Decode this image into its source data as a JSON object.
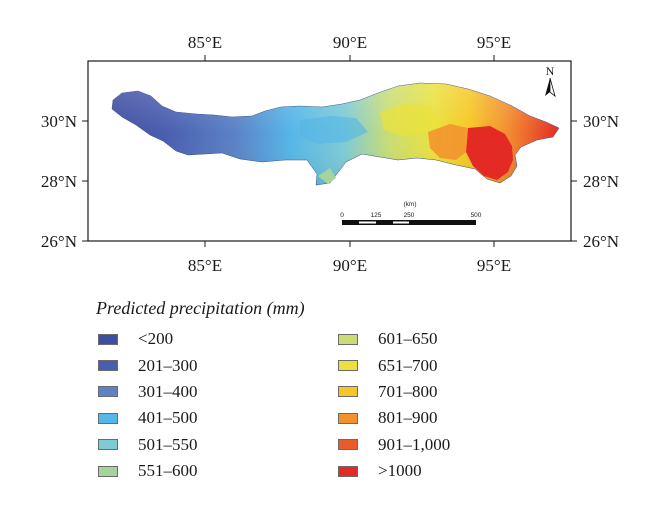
{
  "map": {
    "top_ticks": [
      "85°E",
      "90°E",
      "95°E"
    ],
    "bottom_ticks": [
      "85°E",
      "90°E",
      "95°E"
    ],
    "left_ticks": [
      "30°N",
      "28°N",
      "26°N"
    ],
    "right_ticks": [
      "30°N",
      "28°N",
      "26°N"
    ],
    "north_label": "N",
    "scale_bar": {
      "unit": "(km)",
      "labels": [
        "0",
        "125",
        "250",
        "500"
      ]
    }
  },
  "legend": {
    "title": "Predicted precipitation (mm)",
    "items": [
      {
        "label": "<200",
        "color": "#3e4fa0"
      },
      {
        "label": "201–300",
        "color": "#4a5eb0"
      },
      {
        "label": "301–400",
        "color": "#5b83c6"
      },
      {
        "label": "401–500",
        "color": "#55b6e8"
      },
      {
        "label": "501–550",
        "color": "#7ecbd6"
      },
      {
        "label": "551–600",
        "color": "#a6d39a"
      },
      {
        "label": "601–650",
        "color": "#c9dd74"
      },
      {
        "label": "651–700",
        "color": "#eae13c"
      },
      {
        "label": "701–800",
        "color": "#f6c724"
      },
      {
        "label": "801–900",
        "color": "#f3912e"
      },
      {
        "label": "901–1,000",
        "color": "#ea5b2c"
      },
      {
        "label": ">1000",
        "color": "#e42a24"
      }
    ]
  }
}
